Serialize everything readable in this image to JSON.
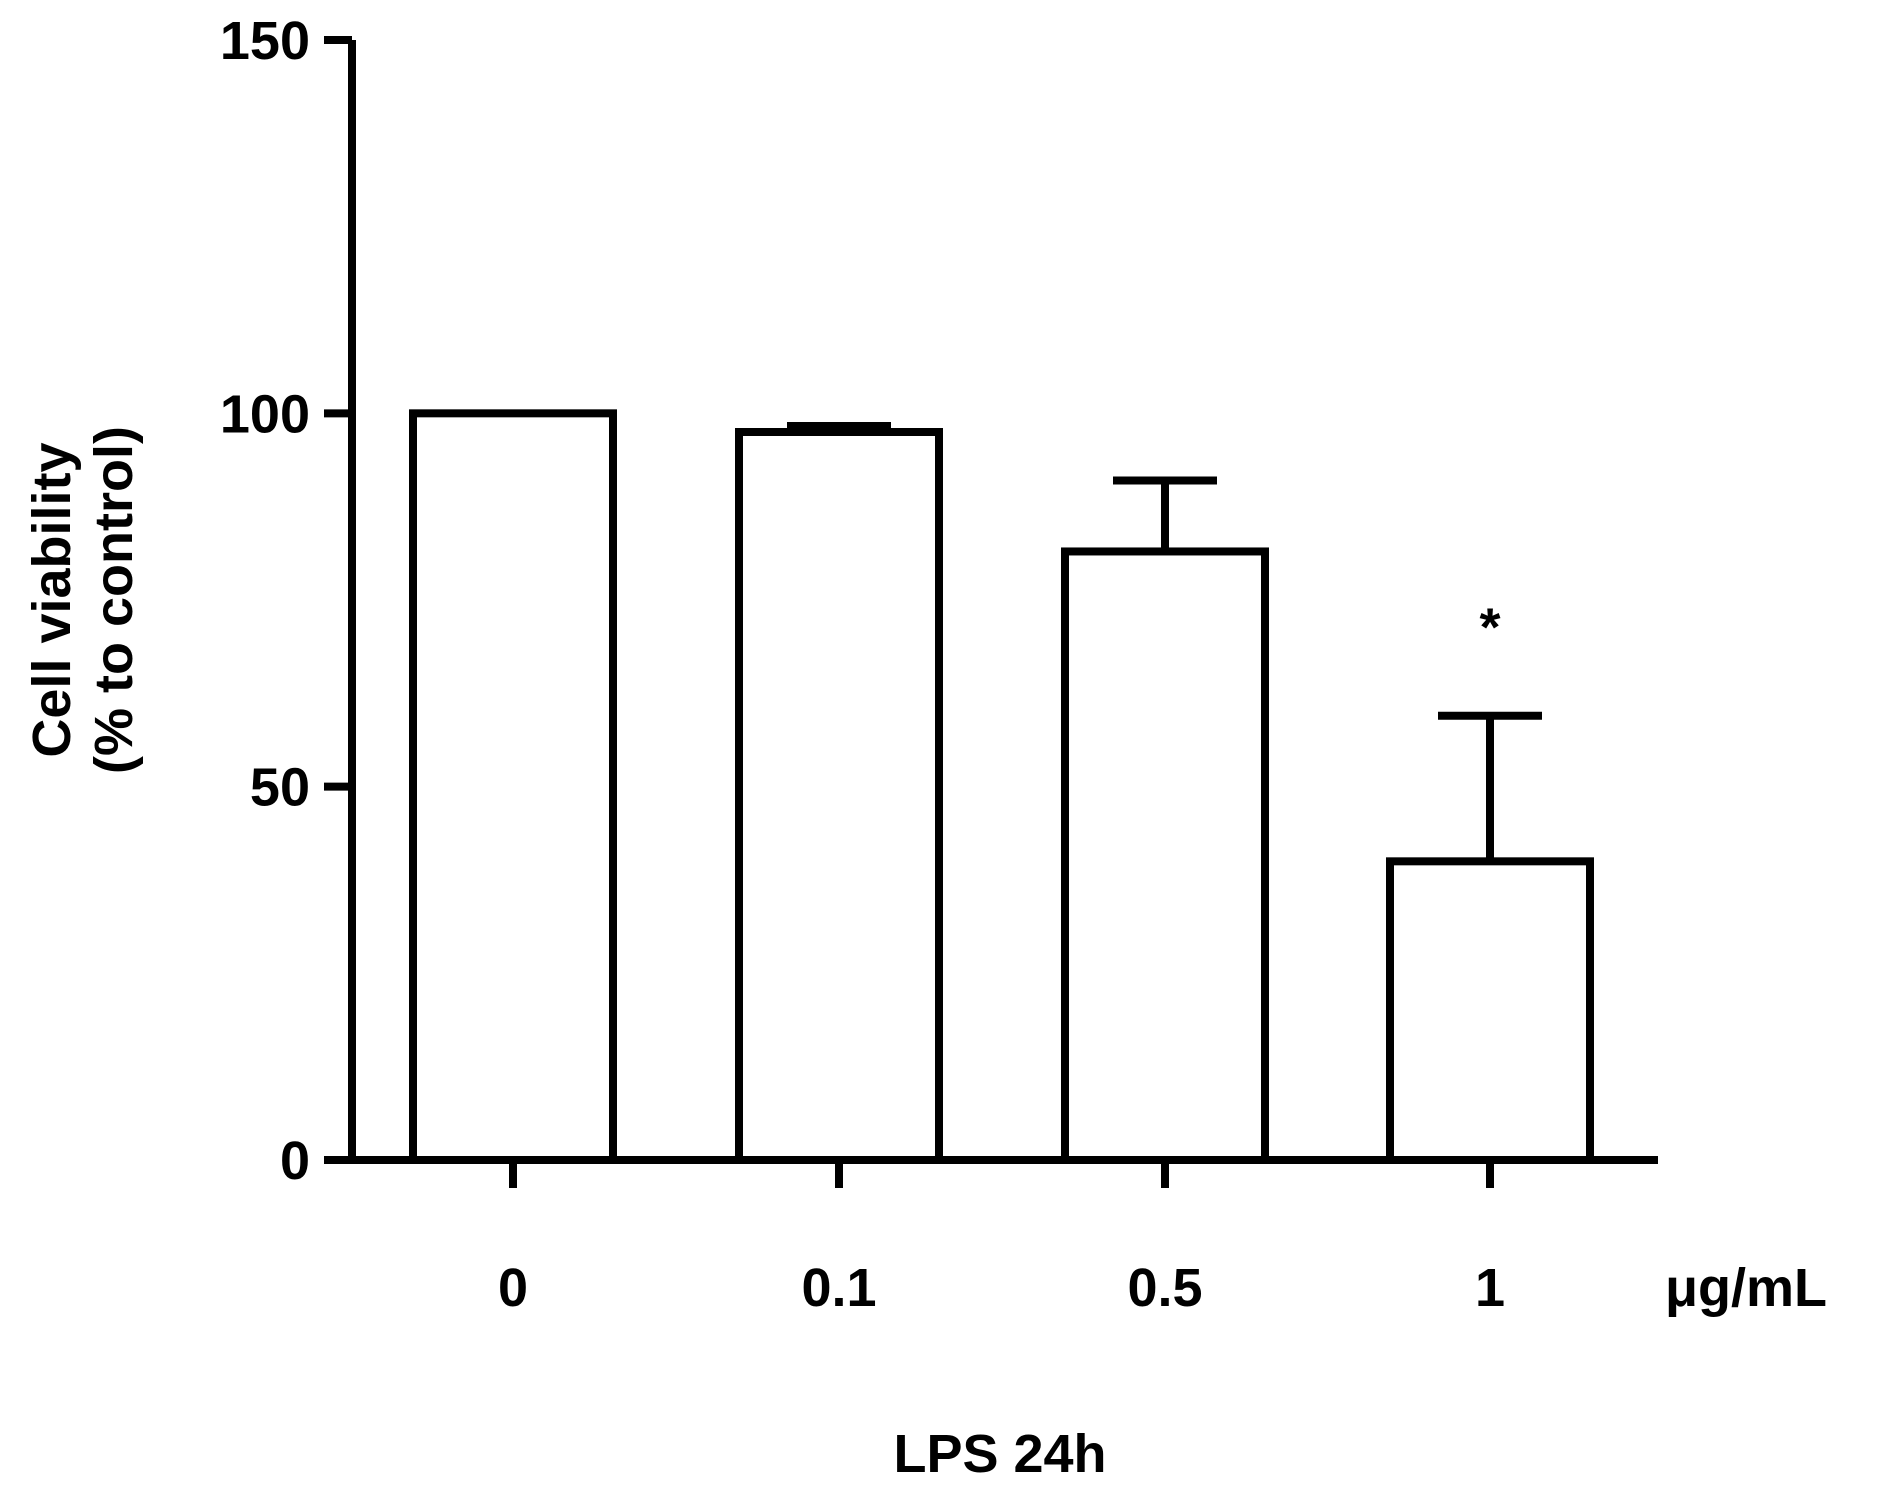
{
  "chart_data": {
    "type": "bar",
    "title": "",
    "ylabel_line1": "Cell viability",
    "ylabel_line2": "(% to control)",
    "xlabel": "LPS 24h",
    "x_unit": "μg/mL",
    "categories": [
      "0",
      "0.1",
      "0.5",
      "1"
    ],
    "values": [
      100,
      97.5,
      81.5,
      40
    ],
    "errors": [
      0,
      0.8,
      9.5,
      19.5
    ],
    "significance": [
      "",
      "",
      "",
      "*"
    ],
    "ylim": [
      0,
      150
    ],
    "yticks": [
      0,
      50,
      100,
      150
    ],
    "grid": false,
    "legend": "none",
    "bar_fill": "#ffffff",
    "stroke_color": "#000000"
  }
}
